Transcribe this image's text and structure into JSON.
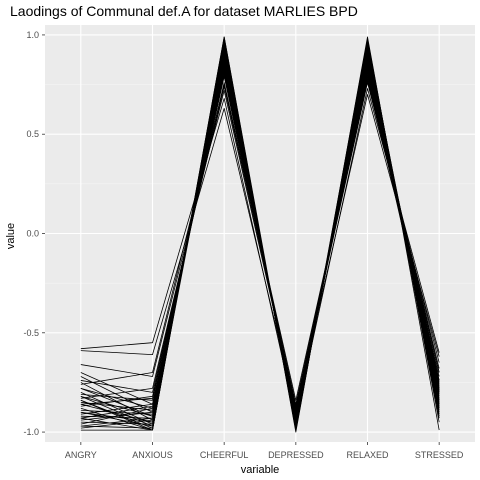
{
  "chart_data": {
    "type": "line",
    "title": "Laodings of Communal def.A for dataset MARLIES BPD",
    "xlabel": "variable",
    "ylabel": "value",
    "categories": [
      "ANGRY",
      "ANXIOUS",
      "CHEERFUL",
      "DEPRESSED",
      "RELAXED",
      "STRESSED"
    ],
    "ylim": [
      -1.05,
      1.05
    ],
    "yticks": [
      {
        "value": 1.0,
        "label": "1.0"
      },
      {
        "value": 0.5,
        "label": "0.5"
      },
      {
        "value": 0.0,
        "label": "0.0"
      },
      {
        "value": -0.5,
        "label": "-0.5"
      },
      {
        "value": -1.0,
        "label": "-1.0"
      }
    ],
    "grid": true,
    "legend": "none",
    "series": [
      {
        "values": [
          -0.58,
          -0.55,
          0.68,
          -0.93,
          0.73,
          -0.6
        ]
      },
      {
        "values": [
          -0.59,
          -0.61,
          0.63,
          -0.89,
          0.7,
          -0.62
        ]
      },
      {
        "values": [
          -0.66,
          -0.72,
          0.72,
          -0.88,
          0.76,
          -0.65
        ]
      },
      {
        "values": [
          -0.7,
          -0.86,
          0.8,
          -0.9,
          0.82,
          -0.7
        ]
      },
      {
        "values": [
          -0.72,
          -0.9,
          0.88,
          -0.95,
          0.86,
          -0.74
        ]
      },
      {
        "values": [
          -0.74,
          -0.8,
          0.76,
          -0.86,
          0.79,
          -0.68
        ]
      },
      {
        "values": [
          -0.75,
          -0.94,
          0.92,
          -0.97,
          0.9,
          -0.8
        ]
      },
      {
        "values": [
          -0.76,
          -0.7,
          0.75,
          -0.84,
          0.78,
          -0.72
        ]
      },
      {
        "values": [
          -0.78,
          -0.88,
          0.85,
          -0.92,
          0.84,
          -0.76
        ]
      },
      {
        "values": [
          -0.8,
          -0.96,
          0.95,
          -0.98,
          0.94,
          -0.84
        ]
      },
      {
        "values": [
          -0.81,
          -0.84,
          0.82,
          -0.9,
          0.8,
          -0.78
        ]
      },
      {
        "values": [
          -0.82,
          -0.92,
          0.9,
          -0.96,
          0.88,
          -0.82
        ]
      },
      {
        "values": [
          -0.83,
          -0.78,
          0.74,
          -0.87,
          0.77,
          -0.7
        ]
      },
      {
        "values": [
          -0.84,
          -0.98,
          0.97,
          -0.99,
          0.96,
          -0.88
        ]
      },
      {
        "values": [
          -0.85,
          -0.89,
          0.86,
          -0.93,
          0.85,
          -0.79
        ]
      },
      {
        "values": [
          -0.86,
          -0.95,
          0.93,
          -0.97,
          0.92,
          -0.86
        ]
      },
      {
        "values": [
          -0.87,
          -0.82,
          0.79,
          -0.89,
          0.81,
          -0.74
        ]
      },
      {
        "values": [
          -0.88,
          -0.99,
          0.98,
          -0.99,
          0.97,
          -0.92
        ]
      },
      {
        "values": [
          -0.89,
          -0.91,
          0.89,
          -0.95,
          0.87,
          -0.83
        ]
      },
      {
        "values": [
          -0.9,
          -0.97,
          0.96,
          -0.98,
          0.95,
          -0.9
        ]
      },
      {
        "values": [
          -0.91,
          -0.86,
          0.83,
          -0.91,
          0.83,
          -0.77
        ]
      },
      {
        "values": [
          -0.92,
          -0.93,
          0.91,
          -0.96,
          0.9,
          -0.85
        ]
      },
      {
        "values": [
          -0.93,
          -0.99,
          0.99,
          -0.98,
          0.98,
          -0.95
        ]
      },
      {
        "values": [
          -0.94,
          -0.9,
          0.87,
          -0.94,
          0.86,
          -0.81
        ]
      },
      {
        "values": [
          -0.95,
          -0.96,
          0.94,
          -0.97,
          0.93,
          -0.88
        ]
      },
      {
        "values": [
          -0.96,
          -0.88,
          0.84,
          -0.92,
          0.84,
          -0.79
        ]
      },
      {
        "values": [
          -0.97,
          -0.98,
          0.97,
          -0.99,
          0.96,
          -0.93
        ]
      },
      {
        "values": [
          -0.98,
          -0.94,
          0.92,
          -0.96,
          0.91,
          -0.87
        ]
      },
      {
        "values": [
          -0.99,
          -0.99,
          0.99,
          -1.0,
          0.99,
          -0.99
        ]
      },
      {
        "values": [
          -0.82,
          -0.97,
          0.9,
          -0.95,
          0.89,
          -0.84
        ]
      },
      {
        "values": [
          -0.86,
          -0.83,
          0.81,
          -0.9,
          0.82,
          -0.75
        ]
      },
      {
        "values": [
          -0.9,
          -0.95,
          0.93,
          -0.97,
          0.92,
          -0.89
        ]
      },
      {
        "values": [
          -0.78,
          -0.92,
          0.87,
          -0.93,
          0.86,
          -0.8
        ]
      },
      {
        "values": [
          -0.84,
          -0.99,
          0.96,
          -0.98,
          0.95,
          -0.91
        ]
      },
      {
        "values": [
          -0.93,
          -0.87,
          0.85,
          -0.92,
          0.85,
          -0.78
        ]
      },
      {
        "values": [
          -0.97,
          -0.93,
          0.91,
          -0.95,
          0.9,
          -0.86
        ]
      }
    ]
  }
}
